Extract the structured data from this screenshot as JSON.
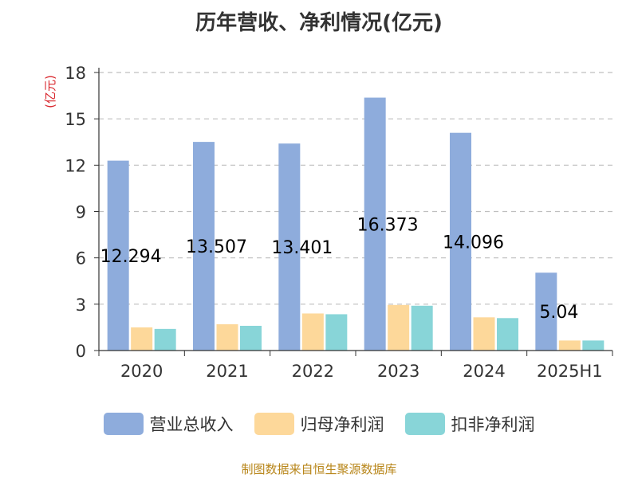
{
  "chart_data": {
    "type": "bar",
    "title": "历年营收、净利情况(亿元)",
    "ylabel": "(亿元)",
    "xlabel": "",
    "categories": [
      "2020",
      "2021",
      "2022",
      "2023",
      "2024",
      "2025H1"
    ],
    "yticks": [
      "0",
      "3",
      "6",
      "9",
      "12",
      "15",
      "18"
    ],
    "ylim": [
      0,
      18
    ],
    "grid": true,
    "legend_position": "bottom",
    "series": [
      {
        "name": "营业总收入",
        "color": "#8eacdc",
        "values": [
          12.294,
          13.507,
          13.401,
          16.373,
          14.096,
          5.04
        ],
        "labels": [
          "12.294",
          "13.507",
          "13.401",
          "16.373",
          "14.096",
          "5.04"
        ]
      },
      {
        "name": "归母净利润",
        "color": "#fdd89a",
        "values": [
          1.5,
          1.7,
          2.4,
          2.95,
          2.15,
          0.65
        ]
      },
      {
        "name": "扣非净利润",
        "color": "#88d5d8",
        "values": [
          1.4,
          1.6,
          2.35,
          2.9,
          2.1,
          0.65
        ]
      }
    ],
    "source": "制图数据来自恒生聚源数据库"
  }
}
